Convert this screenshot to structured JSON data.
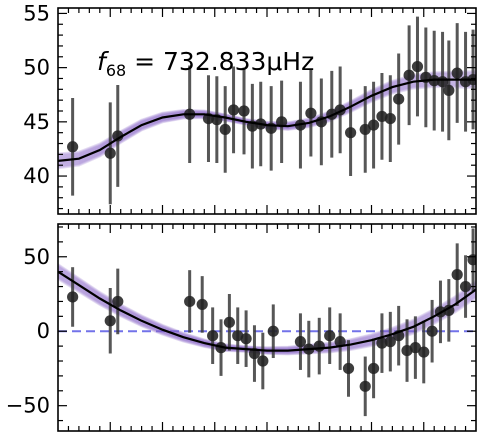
{
  "chart_data": [
    {
      "type": "scatter",
      "panel": "top",
      "annotation": {
        "symbol": "f",
        "subscript": "68",
        "text": " = 732.833μHz"
      },
      "ylim": [
        36.5,
        55.5
      ],
      "yticks": [
        40,
        45,
        50,
        55
      ],
      "xlim": [
        0,
        1
      ],
      "colors": {
        "points": "#222222",
        "fit": "#000000",
        "band": "#8a63c9"
      },
      "points": [
        {
          "x": 0.035,
          "y": 42.7,
          "err": 4.5
        },
        {
          "x": 0.125,
          "y": 42.1,
          "err": 4.7
        },
        {
          "x": 0.143,
          "y": 43.7,
          "err": 4.7
        },
        {
          "x": 0.315,
          "y": 45.7,
          "err": 4.5
        },
        {
          "x": 0.36,
          "y": 45.3,
          "err": 4.0
        },
        {
          "x": 0.38,
          "y": 45.2,
          "err": 4.0
        },
        {
          "x": 0.4,
          "y": 44.3,
          "err": 4.0
        },
        {
          "x": 0.42,
          "y": 46.1,
          "err": 4.0
        },
        {
          "x": 0.445,
          "y": 46.0,
          "err": 4.0
        },
        {
          "x": 0.465,
          "y": 44.6,
          "err": 3.9
        },
        {
          "x": 0.485,
          "y": 44.8,
          "err": 3.9
        },
        {
          "x": 0.51,
          "y": 44.4,
          "err": 3.9
        },
        {
          "x": 0.535,
          "y": 45.0,
          "err": 3.8
        },
        {
          "x": 0.58,
          "y": 44.7,
          "err": 4.0
        },
        {
          "x": 0.605,
          "y": 45.8,
          "err": 4.0
        },
        {
          "x": 0.63,
          "y": 45.0,
          "err": 4.0
        },
        {
          "x": 0.655,
          "y": 45.7,
          "err": 4.0
        },
        {
          "x": 0.675,
          "y": 46.1,
          "err": 4.0
        },
        {
          "x": 0.7,
          "y": 44.0,
          "err": 4.0
        },
        {
          "x": 0.735,
          "y": 44.3,
          "err": 4.0
        },
        {
          "x": 0.755,
          "y": 44.7,
          "err": 4.0
        },
        {
          "x": 0.775,
          "y": 45.5,
          "err": 4.0
        },
        {
          "x": 0.795,
          "y": 45.3,
          "err": 4.0
        },
        {
          "x": 0.815,
          "y": 47.1,
          "err": 4.2
        },
        {
          "x": 0.84,
          "y": 49.3,
          "err": 4.6
        },
        {
          "x": 0.86,
          "y": 50.1,
          "err": 4.6
        },
        {
          "x": 0.88,
          "y": 49.1,
          "err": 4.6
        },
        {
          "x": 0.9,
          "y": 48.8,
          "err": 4.6
        },
        {
          "x": 0.92,
          "y": 48.7,
          "err": 4.6
        },
        {
          "x": 0.935,
          "y": 47.9,
          "err": 4.6
        },
        {
          "x": 0.955,
          "y": 49.5,
          "err": 4.6
        },
        {
          "x": 0.975,
          "y": 48.7,
          "err": 4.6
        },
        {
          "x": 0.993,
          "y": 48.9,
          "err": 4.6
        }
      ],
      "fit": [
        [
          0.0,
          41.4
        ],
        [
          0.05,
          41.6
        ],
        [
          0.1,
          42.4
        ],
        [
          0.15,
          43.6
        ],
        [
          0.2,
          44.7
        ],
        [
          0.25,
          45.4
        ],
        [
          0.3,
          45.7
        ],
        [
          0.35,
          45.7
        ],
        [
          0.4,
          45.4
        ],
        [
          0.45,
          45.0
        ],
        [
          0.5,
          44.7
        ],
        [
          0.55,
          44.6
        ],
        [
          0.6,
          44.9
        ],
        [
          0.65,
          45.5
        ],
        [
          0.7,
          46.4
        ],
        [
          0.75,
          47.4
        ],
        [
          0.8,
          48.2
        ],
        [
          0.85,
          48.7
        ],
        [
          0.9,
          48.9
        ],
        [
          0.95,
          48.9
        ],
        [
          1.0,
          48.9
        ]
      ]
    },
    {
      "type": "scatter",
      "panel": "bottom",
      "ylim": [
        -67,
        72
      ],
      "yticks": [
        -50,
        0,
        50
      ],
      "ytick_labels": [
        "−50",
        "0",
        "50"
      ],
      "xlim": [
        0,
        1
      ],
      "reference_line": {
        "y": 0,
        "color": "#5a5ae6"
      },
      "colors": {
        "points": "#222222",
        "fit": "#000000",
        "band": "#8a63c9"
      },
      "points": [
        {
          "x": 0.035,
          "y": 23,
          "err": 20
        },
        {
          "x": 0.125,
          "y": 7,
          "err": 22
        },
        {
          "x": 0.143,
          "y": 20,
          "err": 22
        },
        {
          "x": 0.315,
          "y": 20,
          "err": 21
        },
        {
          "x": 0.345,
          "y": 18,
          "err": 19
        },
        {
          "x": 0.37,
          "y": -3,
          "err": 19
        },
        {
          "x": 0.39,
          "y": -11,
          "err": 19
        },
        {
          "x": 0.41,
          "y": 6,
          "err": 19
        },
        {
          "x": 0.43,
          "y": -3,
          "err": 19
        },
        {
          "x": 0.45,
          "y": -5,
          "err": 19
        },
        {
          "x": 0.47,
          "y": -15,
          "err": 19
        },
        {
          "x": 0.49,
          "y": -20,
          "err": 19
        },
        {
          "x": 0.515,
          "y": 0,
          "err": 18
        },
        {
          "x": 0.58,
          "y": -7,
          "err": 19
        },
        {
          "x": 0.6,
          "y": -12,
          "err": 19
        },
        {
          "x": 0.625,
          "y": -10,
          "err": 19
        },
        {
          "x": 0.65,
          "y": -3,
          "err": 19
        },
        {
          "x": 0.675,
          "y": -7,
          "err": 19
        },
        {
          "x": 0.695,
          "y": -25,
          "err": 19
        },
        {
          "x": 0.735,
          "y": -37,
          "err": 20
        },
        {
          "x": 0.755,
          "y": -25,
          "err": 20
        },
        {
          "x": 0.775,
          "y": -8,
          "err": 20
        },
        {
          "x": 0.795,
          "y": -7,
          "err": 20
        },
        {
          "x": 0.815,
          "y": -3,
          "err": 20
        },
        {
          "x": 0.835,
          "y": -13,
          "err": 21
        },
        {
          "x": 0.855,
          "y": -11,
          "err": 21
        },
        {
          "x": 0.875,
          "y": -14,
          "err": 21
        },
        {
          "x": 0.895,
          "y": 0,
          "err": 21
        },
        {
          "x": 0.915,
          "y": 13,
          "err": 21
        },
        {
          "x": 0.935,
          "y": 14,
          "err": 21
        },
        {
          "x": 0.955,
          "y": 38,
          "err": 21
        },
        {
          "x": 0.975,
          "y": 30,
          "err": 21
        },
        {
          "x": 0.993,
          "y": 48,
          "err": 21
        }
      ],
      "fit": [
        [
          0.0,
          40
        ],
        [
          0.05,
          31
        ],
        [
          0.1,
          22
        ],
        [
          0.15,
          14
        ],
        [
          0.2,
          7
        ],
        [
          0.25,
          1
        ],
        [
          0.3,
          -4
        ],
        [
          0.35,
          -8
        ],
        [
          0.4,
          -11
        ],
        [
          0.45,
          -12
        ],
        [
          0.5,
          -13
        ],
        [
          0.55,
          -13
        ],
        [
          0.6,
          -12
        ],
        [
          0.65,
          -11
        ],
        [
          0.7,
          -9
        ],
        [
          0.75,
          -6
        ],
        [
          0.8,
          -2
        ],
        [
          0.85,
          3
        ],
        [
          0.9,
          10
        ],
        [
          0.95,
          18
        ],
        [
          1.0,
          28
        ]
      ]
    }
  ]
}
